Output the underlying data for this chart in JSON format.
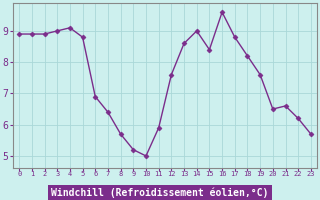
{
  "x": [
    0,
    1,
    2,
    3,
    4,
    5,
    6,
    7,
    8,
    9,
    10,
    11,
    12,
    13,
    14,
    15,
    16,
    17,
    18,
    19,
    20,
    21,
    22,
    23
  ],
  "y": [
    8.9,
    8.9,
    8.9,
    9.0,
    9.1,
    8.8,
    6.9,
    6.4,
    5.7,
    5.2,
    5.0,
    5.9,
    7.6,
    8.6,
    9.0,
    8.4,
    9.6,
    8.8,
    8.2,
    7.6,
    6.5,
    6.6,
    6.2,
    5.7
  ],
  "line_color": "#7b2d8b",
  "marker": "D",
  "markersize": 2.5,
  "linewidth": 1.0,
  "xlabel": "Windchill (Refroidissement éolien,°C)",
  "xlabel_fontsize": 7,
  "ylabel_ticks": [
    5,
    6,
    7,
    8,
    9
  ],
  "xtick_labels": [
    "0",
    "1",
    "2",
    "3",
    "4",
    "5",
    "6",
    "7",
    "8",
    "9",
    "10",
    "11",
    "12",
    "13",
    "14",
    "15",
    "16",
    "17",
    "18",
    "19",
    "20",
    "21",
    "22",
    "23"
  ],
  "ylim": [
    4.6,
    9.9
  ],
  "xlim": [
    -0.5,
    23.5
  ],
  "bg_color": "#cdf0ee",
  "grid_color": "#aad8d8",
  "tick_color": "#7b2d8b",
  "xlabel_bg": "#7b2d8b",
  "xlabel_fg": "#ffffff",
  "spine_color": "#888888",
  "ytick_fontsize": 7,
  "xtick_fontsize": 5
}
